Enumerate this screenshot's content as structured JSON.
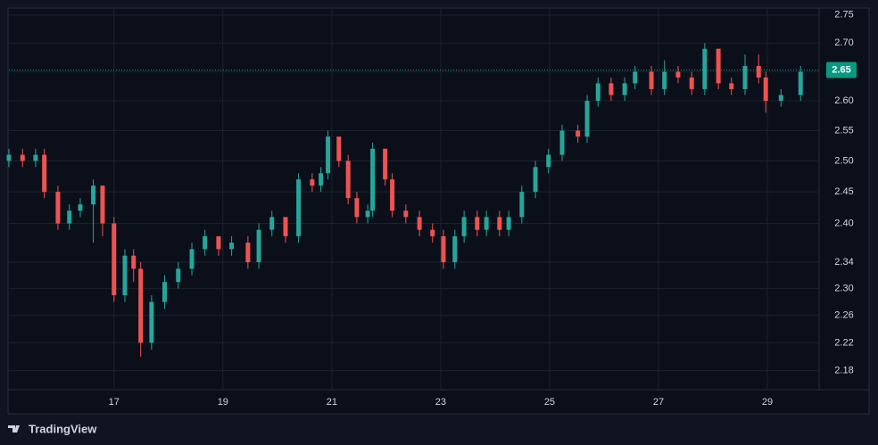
{
  "chart_data": {
    "type": "candlestick",
    "x": [
      15.07,
      15.32,
      15.56,
      15.72,
      15.97,
      16.18,
      16.38,
      16.62,
      16.79,
      17.0,
      17.2,
      17.36,
      17.49,
      17.69,
      17.93,
      18.18,
      18.43,
      18.67,
      18.92,
      19.16,
      19.46,
      19.66,
      19.9,
      20.15,
      20.39,
      20.64,
      20.8,
      20.93,
      21.13,
      21.3,
      21.46,
      21.66,
      21.75,
      21.98,
      22.11,
      22.36,
      22.61,
      22.85,
      23.05,
      23.26,
      23.43,
      23.67,
      23.84,
      24.08,
      24.25,
      24.49,
      24.74,
      24.98,
      25.23,
      25.52,
      25.69,
      25.89,
      26.13,
      26.38,
      26.57,
      26.87,
      27.11,
      27.36,
      27.61,
      27.85,
      28.1,
      28.34,
      28.59,
      28.84,
      28.97,
      29.25,
      29.61
    ],
    "open": [
      2.5,
      2.51,
      2.5,
      2.51,
      2.45,
      2.4,
      2.42,
      2.43,
      2.46,
      2.4,
      2.29,
      2.35,
      2.33,
      2.22,
      2.28,
      2.31,
      2.33,
      2.36,
      2.38,
      2.36,
      2.37,
      2.34,
      2.39,
      2.41,
      2.38,
      2.47,
      2.46,
      2.48,
      2.54,
      2.5,
      2.44,
      2.41,
      2.42,
      2.52,
      2.47,
      2.42,
      2.41,
      2.39,
      2.38,
      2.34,
      2.38,
      2.41,
      2.39,
      2.41,
      2.39,
      2.41,
      2.45,
      2.49,
      2.51,
      2.55,
      2.54,
      2.6,
      2.63,
      2.61,
      2.63,
      2.65,
      2.62,
      2.65,
      2.64,
      2.62,
      2.69,
      2.63,
      2.62,
      2.66,
      2.64,
      2.6,
      2.61
    ],
    "high": [
      2.52,
      2.52,
      2.52,
      2.52,
      2.46,
      2.43,
      2.44,
      2.47,
      2.46,
      2.41,
      2.36,
      2.36,
      2.34,
      2.29,
      2.32,
      2.34,
      2.37,
      2.39,
      2.38,
      2.38,
      2.38,
      2.4,
      2.42,
      2.41,
      2.48,
      2.48,
      2.49,
      2.55,
      2.54,
      2.51,
      2.45,
      2.43,
      2.53,
      2.52,
      2.48,
      2.43,
      2.42,
      2.4,
      2.39,
      2.39,
      2.42,
      2.42,
      2.42,
      2.42,
      2.42,
      2.46,
      2.5,
      2.52,
      2.56,
      2.56,
      2.61,
      2.64,
      2.64,
      2.64,
      2.66,
      2.66,
      2.67,
      2.66,
      2.65,
      2.7,
      2.69,
      2.64,
      2.68,
      2.68,
      2.65,
      2.62,
      2.66
    ],
    "low": [
      2.49,
      2.49,
      2.49,
      2.44,
      2.39,
      2.39,
      2.41,
      2.37,
      2.38,
      2.28,
      2.28,
      2.31,
      2.2,
      2.21,
      2.27,
      2.3,
      2.32,
      2.35,
      2.35,
      2.35,
      2.33,
      2.33,
      2.38,
      2.37,
      2.37,
      2.45,
      2.45,
      2.47,
      2.49,
      2.43,
      2.4,
      2.4,
      2.41,
      2.46,
      2.41,
      2.4,
      2.38,
      2.37,
      2.33,
      2.33,
      2.37,
      2.38,
      2.38,
      2.38,
      2.38,
      2.4,
      2.44,
      2.48,
      2.5,
      2.53,
      2.53,
      2.59,
      2.6,
      2.6,
      2.62,
      2.61,
      2.61,
      2.63,
      2.61,
      2.61,
      2.62,
      2.61,
      2.61,
      2.63,
      2.58,
      2.59,
      2.6
    ],
    "close": [
      2.51,
      2.5,
      2.51,
      2.45,
      2.4,
      2.42,
      2.43,
      2.46,
      2.4,
      2.29,
      2.35,
      2.33,
      2.22,
      2.28,
      2.31,
      2.33,
      2.36,
      2.38,
      2.36,
      2.37,
      2.34,
      2.39,
      2.41,
      2.38,
      2.47,
      2.46,
      2.48,
      2.54,
      2.5,
      2.44,
      2.41,
      2.42,
      2.52,
      2.47,
      2.42,
      2.41,
      2.39,
      2.38,
      2.34,
      2.38,
      2.41,
      2.39,
      2.41,
      2.39,
      2.41,
      2.45,
      2.49,
      2.51,
      2.55,
      2.54,
      2.6,
      2.63,
      2.61,
      2.63,
      2.65,
      2.62,
      2.65,
      2.64,
      2.62,
      2.69,
      2.63,
      2.62,
      2.66,
      2.64,
      2.6,
      2.61,
      2.65
    ],
    "up_color": "#26a69a",
    "down_color": "#ef5350",
    "xlim": [
      15.07,
      29.95
    ],
    "xticks": [
      17,
      19,
      21,
      23,
      25,
      27,
      29
    ],
    "ylim": [
      2.153,
      2.769
    ],
    "log_scale": true,
    "yticks": [
      2.75,
      {
        "value": 2.7,
        "label": "2.70"
      },
      2.65,
      {
        "value": 2.6,
        "label": "2.60"
      },
      2.55,
      {
        "value": 2.5,
        "label": "2.50"
      },
      2.45,
      {
        "value": 2.4,
        "label": "2.40"
      },
      2.34,
      {
        "value": 2.3,
        "label": "2.30"
      },
      2.26,
      2.22,
      2.18
    ],
    "grid": true,
    "last_price": {
      "value": 2.653,
      "label": "2.65",
      "color": "#089981"
    }
  },
  "footer": {
    "brand": "TradingView"
  }
}
